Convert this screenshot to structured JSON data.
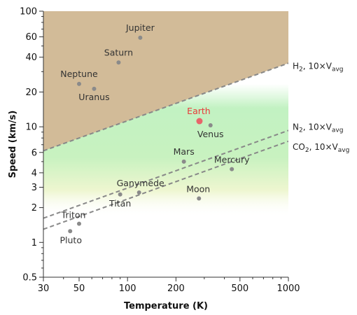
{
  "chart_data": {
    "type": "scatter",
    "xlabel": "Temperature (K)",
    "ylabel": "Speed (km/s)",
    "xscale": "log",
    "yscale": "log",
    "xlim": [
      30,
      1000
    ],
    "ylim": [
      0.5,
      100
    ],
    "x_ticks": [
      30,
      50,
      100,
      200,
      500,
      1000
    ],
    "y_ticks": [
      0.5,
      1,
      2,
      3,
      4,
      6,
      10,
      20,
      40,
      60,
      100
    ],
    "grid": false,
    "points": [
      {
        "label": "Jupiter",
        "x": 120,
        "y": 59,
        "color": "#8a8a8a"
      },
      {
        "label": "Saturn",
        "x": 88,
        "y": 36,
        "color": "#8a8a8a"
      },
      {
        "label": "Neptune",
        "x": 50,
        "y": 23.5,
        "color": "#8a8a8a"
      },
      {
        "label": "Uranus",
        "x": 62,
        "y": 21.3,
        "color": "#8a8a8a"
      },
      {
        "label": "Earth",
        "x": 280,
        "y": 11.2,
        "color": "#e8656a"
      },
      {
        "label": "Venus",
        "x": 328,
        "y": 10.3,
        "color": "#8a8a8a"
      },
      {
        "label": "Mars",
        "x": 224,
        "y": 5.0,
        "color": "#8a8a8a"
      },
      {
        "label": "Mercury",
        "x": 445,
        "y": 4.3,
        "color": "#8a8a8a"
      },
      {
        "label": "Ganymede",
        "x": 118,
        "y": 2.7,
        "color": "#8a8a8a"
      },
      {
        "label": "Titan",
        "x": 90,
        "y": 2.6,
        "color": "#8a8a8a"
      },
      {
        "label": "Moon",
        "x": 278,
        "y": 2.4,
        "color": "#8a8a8a"
      },
      {
        "label": "Triton",
        "x": 50,
        "y": 1.45,
        "color": "#8a8a8a"
      },
      {
        "label": "Pluto",
        "x": 44,
        "y": 1.25,
        "color": "#8a8a8a"
      }
    ],
    "lines": [
      {
        "label": "H",
        "sub": "2",
        "suffix": ", 10×V",
        "sub2": "avg",
        "x": [
          30,
          1000
        ],
        "y": [
          6.2,
          35.5
        ]
      },
      {
        "label": "N",
        "sub": "2",
        "suffix": ", 10×V",
        "sub2": "avg",
        "x": [
          30,
          1000
        ],
        "y": [
          1.62,
          9.3
        ]
      },
      {
        "label": "CO",
        "sub": "2",
        "suffix": ", 10×V",
        "sub2": "avg",
        "x": [
          30,
          1000
        ],
        "y": [
          1.3,
          7.5
        ]
      }
    ],
    "colors": {
      "retained": "#ffffff",
      "partial": "#c2f2c2",
      "escaped": "#d2bb98",
      "line": "#888888"
    }
  }
}
